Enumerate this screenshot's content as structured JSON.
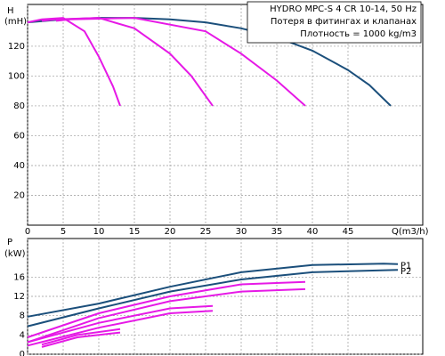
{
  "chart_data": [
    {
      "type": "line",
      "title": "HYDRO MPC-S 4 CR 10-14, 50 Hz",
      "subtitle": [
        "Потеря в фитингах и клапанах",
        "Плотность = 1000 kg/m3"
      ],
      "ylabel": [
        "H",
        "(mH)"
      ],
      "xlabel": "Q(m3/h)",
      "xlim": [
        0,
        55.5
      ],
      "xticks": [
        0,
        5,
        10,
        15,
        20,
        25,
        30,
        35,
        40,
        45
      ],
      "ylim": [
        0,
        148
      ],
      "yticks": [
        20,
        40,
        60,
        80,
        100,
        120
      ],
      "grid": true,
      "series": [
        {
          "color": "#1b4f7b",
          "x": [
            0,
            5,
            10,
            15,
            20,
            25,
            30,
            35,
            40,
            45,
            48,
            51
          ],
          "values": [
            136,
            138,
            139,
            139,
            138,
            136,
            132,
            126,
            117,
            104,
            94,
            80
          ]
        },
        {
          "color": "#e619e6",
          "x": [
            0,
            2,
            5,
            8,
            10,
            12,
            13
          ],
          "values": [
            136,
            138,
            139,
            130,
            113,
            93,
            80
          ]
        },
        {
          "color": "#e619e6",
          "x": [
            2,
            4,
            10,
            15,
            20,
            23,
            26
          ],
          "values": [
            137,
            138,
            139,
            132,
            115,
            100,
            80
          ]
        },
        {
          "color": "#e619e6",
          "x": [
            4,
            6,
            15,
            25,
            30,
            35,
            39
          ],
          "values": [
            137,
            138,
            139,
            130,
            115,
            97,
            80
          ]
        }
      ]
    },
    {
      "type": "line",
      "ylabel": [
        "P",
        "(kW)"
      ],
      "xlim": [
        0,
        55.5
      ],
      "ylim": [
        0,
        24
      ],
      "yticks": [
        0,
        4,
        8,
        12,
        16
      ],
      "grid": true,
      "series": [
        {
          "name": "P1",
          "color": "#1b4f7b",
          "x": [
            0,
            10,
            20,
            30,
            40,
            50,
            52
          ],
          "values": [
            7.8,
            10.5,
            14,
            17,
            18.5,
            18.8,
            18.7
          ]
        },
        {
          "name": "P2",
          "color": "#1b4f7b",
          "x": [
            0,
            10,
            20,
            30,
            40,
            52
          ],
          "values": [
            5.8,
            9.5,
            13,
            15.5,
            17,
            17.5
          ]
        },
        {
          "color": "#e619e6",
          "x": [
            0,
            10,
            20,
            30,
            39
          ],
          "values": [
            3.5,
            8.5,
            12,
            14.5,
            15
          ]
        },
        {
          "color": "#e619e6",
          "x": [
            0,
            10,
            20,
            30,
            39
          ],
          "values": [
            2.5,
            7.5,
            11,
            13,
            13.5
          ]
        },
        {
          "color": "#e619e6",
          "x": [
            0,
            10,
            20,
            26
          ],
          "values": [
            2.5,
            6.5,
            9.5,
            10
          ]
        },
        {
          "color": "#e619e6",
          "x": [
            0,
            10,
            20,
            26
          ],
          "values": [
            1.8,
            5.5,
            8.5,
            9
          ]
        },
        {
          "color": "#e619e6",
          "x": [
            2,
            7,
            13
          ],
          "values": [
            2,
            4,
            5.2
          ]
        },
        {
          "color": "#e619e6",
          "x": [
            2,
            7,
            13
          ],
          "values": [
            1.5,
            3.5,
            4.5
          ]
        }
      ]
    }
  ]
}
